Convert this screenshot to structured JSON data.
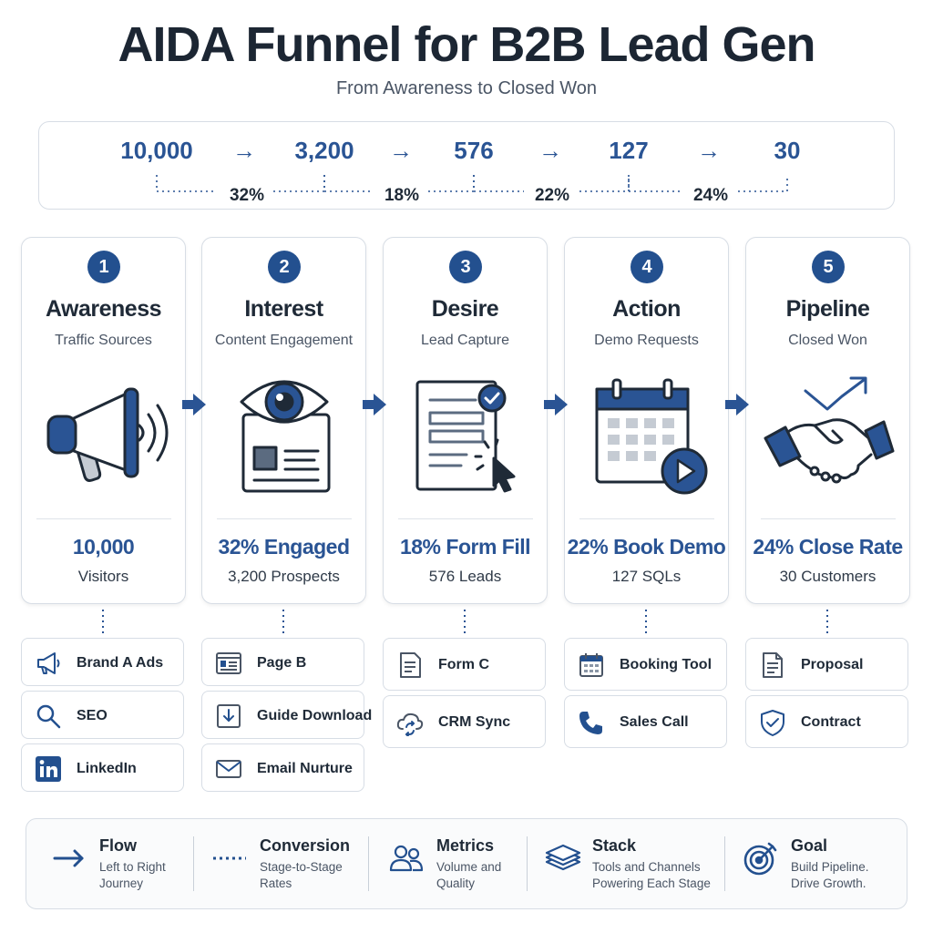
{
  "header": {
    "title": "AIDA Funnel for B2B Lead Gen",
    "subtitle": "From Awareness to Closed Won"
  },
  "summary": {
    "volumes": [
      "10,000",
      "3,200",
      "576",
      "127",
      "30"
    ],
    "arrow_glyph": "→",
    "rates": [
      "32%",
      "18%",
      "22%",
      "24%"
    ]
  },
  "stages": [
    {
      "number": "1",
      "name": "Awareness",
      "sub": "Traffic Sources",
      "icon": "megaphone-icon",
      "metric": "10,000",
      "metric_sub": "Visitors"
    },
    {
      "number": "2",
      "name": "Interest",
      "sub": "Content Engagement",
      "icon": "eye-document-icon",
      "metric": "32% Engaged",
      "metric_sub": "3,200 Prospects"
    },
    {
      "number": "3",
      "name": "Desire",
      "sub": "Lead Capture",
      "icon": "form-click-icon",
      "metric": "18% Form Fill",
      "metric_sub": "576 Leads"
    },
    {
      "number": "4",
      "name": "Action",
      "sub": "Demo Requests",
      "icon": "calendar-play-icon",
      "metric": "22% Book Demo",
      "metric_sub": "127 SQLs"
    },
    {
      "number": "5",
      "name": "Pipeline",
      "sub": "Closed Won",
      "icon": "handshake-icon",
      "metric": "24% Close Rate",
      "metric_sub": "30 Customers"
    }
  ],
  "tools": [
    [
      {
        "label": "Brand A Ads",
        "icon": "megaphone-icon"
      },
      {
        "label": "SEO",
        "icon": "search-icon"
      },
      {
        "label": "LinkedIn",
        "icon": "linkedin-icon"
      }
    ],
    [
      {
        "label": "Page B",
        "icon": "webpage-icon"
      },
      {
        "label": "Guide Download",
        "icon": "download-icon"
      },
      {
        "label": "Email Nurture",
        "icon": "envelope-icon"
      }
    ],
    [
      {
        "label": "Form C",
        "icon": "form-icon"
      },
      {
        "label": "CRM Sync",
        "icon": "cloud-sync-icon"
      }
    ],
    [
      {
        "label": "Booking Tool",
        "icon": "calendar-icon"
      },
      {
        "label": "Sales Call",
        "icon": "phone-icon"
      }
    ],
    [
      {
        "label": "Proposal",
        "icon": "document-icon"
      },
      {
        "label": "Contract",
        "icon": "shield-check-icon"
      }
    ]
  ],
  "legend": [
    {
      "title": "Flow",
      "desc": "Left to Right Journey",
      "icon": "arrow-right-icon"
    },
    {
      "title": "Conversion",
      "desc": "Stage-to-Stage Rates",
      "icon": "dotted-line-icon"
    },
    {
      "title": "Metrics",
      "desc": "Volume and Quality",
      "icon": "people-icon"
    },
    {
      "title": "Stack",
      "desc": "Tools and Channels Powering Each Stage",
      "icon": "layers-icon"
    },
    {
      "title": "Goal",
      "desc": "Build Pipeline. Drive Growth.",
      "icon": "target-icon"
    }
  ],
  "colors": {
    "primary": "#23508f",
    "accent_text": "#2a5494",
    "border": "#d7dde5",
    "text": "#1f2a37",
    "muted": "#4a5565"
  }
}
